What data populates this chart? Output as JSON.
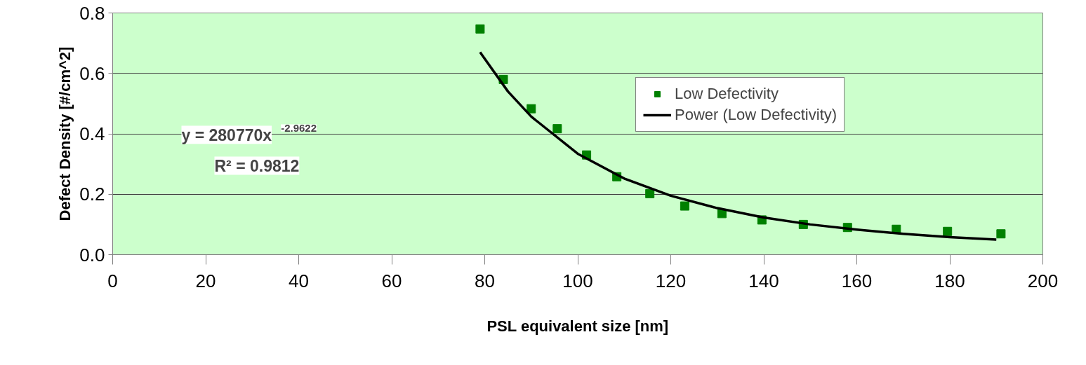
{
  "chart_data": {
    "type": "scatter",
    "xlabel": "PSL equivalent size [nm]",
    "ylabel": "Defect Density [#/cm^2]",
    "series": [
      {
        "name": "Low Defectivity",
        "color": "#008000",
        "marker": "square",
        "x": [
          79.0,
          84.0,
          90.0,
          95.6,
          101.9,
          108.4,
          115.5,
          123.0,
          131.0,
          139.6,
          148.5,
          158.0,
          168.5,
          179.5,
          191.0
        ],
        "values": [
          0.747,
          0.58,
          0.483,
          0.417,
          0.33,
          0.258,
          0.202,
          0.161,
          0.136,
          0.115,
          0.1,
          0.09,
          0.084,
          0.077,
          0.069
        ]
      },
      {
        "name": "Power (Low Defectivity)",
        "type": "line",
        "color": "#000000",
        "line_style": "solid",
        "x": [
          79,
          85,
          90,
          100,
          110,
          120,
          130,
          140,
          150,
          160,
          170,
          180,
          190
        ],
        "values": [
          0.67,
          0.54,
          0.457,
          0.334,
          0.252,
          0.195,
          0.154,
          0.123,
          0.1,
          0.083,
          0.069,
          0.058,
          0.05
        ]
      }
    ],
    "annotations": [
      "y = 280770x$^{-2.9622}$",
      "R² = 0.9812"
    ],
    "xlim": [
      0,
      200
    ],
    "xticks": [
      0,
      20,
      40,
      60,
      80,
      100,
      120,
      140,
      160,
      180,
      200
    ],
    "ylim": [
      0,
      0.8
    ],
    "yticks": [
      {
        "value": 0,
        "label": "0.0"
      },
      {
        "value": 0.2,
        "label": "0.2"
      },
      {
        "value": 0.4,
        "label": "0.4"
      },
      {
        "value": 0.6,
        "label": "0.6"
      },
      {
        "value": 0.8,
        "label": "0.8"
      }
    ],
    "grid": "y",
    "legend": "top right"
  }
}
